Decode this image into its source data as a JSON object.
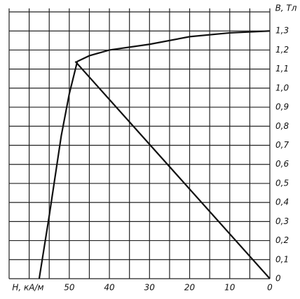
{
  "chart_data": {
    "type": "line",
    "x_label": "H, кА/м",
    "y_label": "B, Тл",
    "xlim": [
      65,
      0
    ],
    "ylim": [
      0,
      1.4
    ],
    "xticks": [
      50,
      40,
      30,
      20,
      10,
      0
    ],
    "xgrid": [
      65,
      60,
      55,
      50,
      45,
      40,
      35,
      30,
      25,
      20,
      15,
      10,
      5,
      0
    ],
    "yticks": [
      0,
      {
        "value": 0.1,
        "label": "0,1"
      },
      {
        "value": 0.2,
        "label": "0,2"
      },
      {
        "value": 0.3,
        "label": "0,3"
      },
      {
        "value": 0.4,
        "label": "0,4"
      },
      {
        "value": 0.5,
        "label": "0,5"
      },
      {
        "value": 0.6,
        "label": "0,6"
      },
      {
        "value": 0.7,
        "label": "0,7"
      },
      {
        "value": 0.8,
        "label": "0,8"
      },
      {
        "value": 0.9,
        "label": "0,9"
      },
      {
        "value": 1.0,
        "label": "1,0"
      },
      {
        "value": 1.1,
        "label": "1,1"
      },
      {
        "value": 1.2,
        "label": "1,2"
      },
      {
        "value": 1.3,
        "label": "1,3"
      }
    ],
    "ygrid": [
      0,
      0.1,
      0.2,
      0.3,
      0.4,
      0.5,
      0.6,
      0.7,
      0.8,
      0.9,
      1.0,
      1.1,
      1.2,
      1.3,
      1.4
    ],
    "grid": true,
    "series": [
      {
        "color": "#111",
        "x": [
          0,
          10,
          20,
          30,
          40,
          45,
          48,
          50,
          52,
          55,
          57.5
        ],
        "values": [
          1.3,
          1.29,
          1.27,
          1.23,
          1.2,
          1.17,
          1.14,
          0.97,
          0.75,
          0.33,
          0
        ]
      },
      {
        "color": "#111",
        "x": [
          0,
          48.5
        ],
        "values": [
          0,
          1.14
        ]
      }
    ]
  }
}
